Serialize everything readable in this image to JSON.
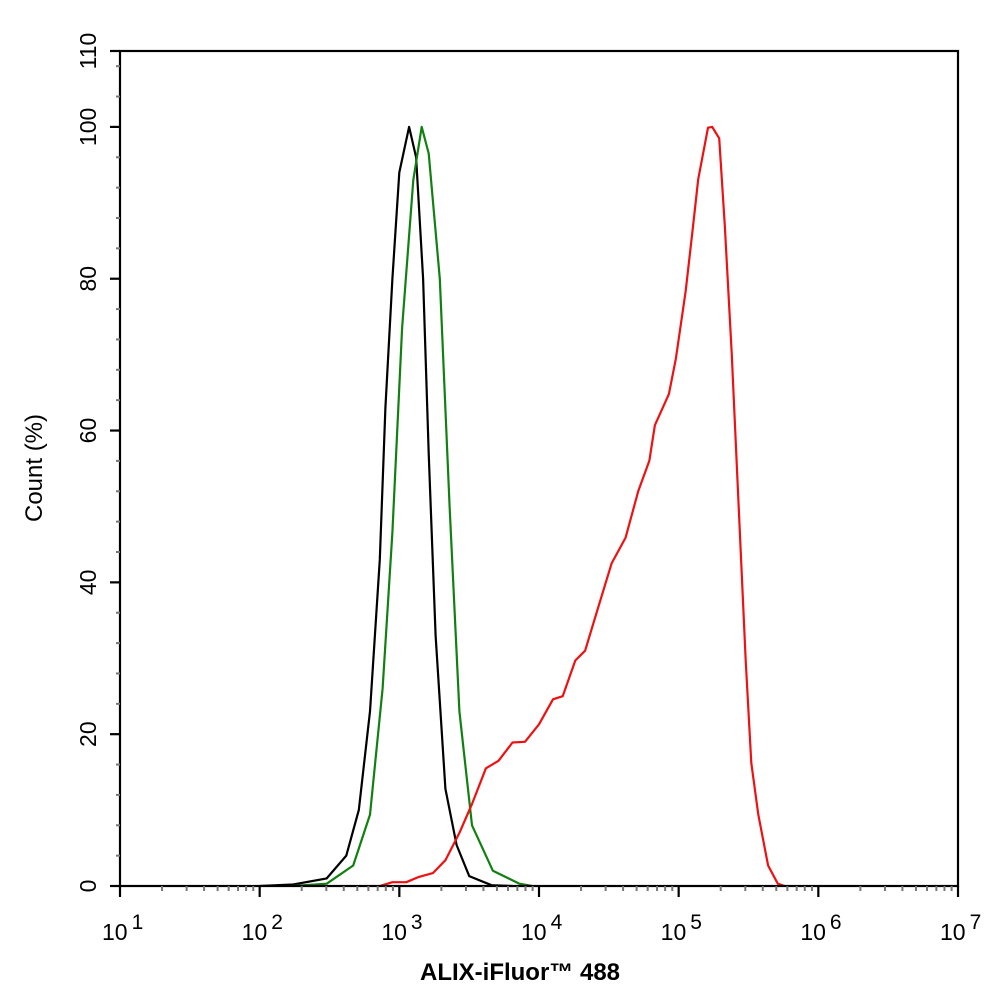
{
  "chart_data": {
    "type": "line",
    "title": "",
    "xlabel": "ALIX-iFluor™ 488",
    "ylabel": "Count  (%)",
    "x_scale": "log",
    "xlim": [
      10,
      10000000
    ],
    "ylim": [
      0,
      110
    ],
    "x_ticks": [
      {
        "base": "10",
        "exp": "1"
      },
      {
        "base": "10",
        "exp": "2"
      },
      {
        "base": "10",
        "exp": "3"
      },
      {
        "base": "10",
        "exp": "4"
      },
      {
        "base": "10",
        "exp": "5"
      },
      {
        "base": "10",
        "exp": "6"
      },
      {
        "base": "10",
        "exp": "7"
      }
    ],
    "y_ticks": [
      "0",
      "20",
      "40",
      "60",
      "80",
      "100",
      "110"
    ],
    "grid": false,
    "legend": "none",
    "series": [
      {
        "color": "#000000",
        "x_log10": [
          2.0,
          2.24,
          2.48,
          2.62,
          2.71,
          2.79,
          2.86,
          2.9,
          2.95,
          3.0,
          3.07,
          3.12,
          3.17,
          3.21,
          3.26,
          3.33,
          3.41,
          3.5,
          3.66,
          3.81
        ],
        "y": [
          0,
          0.2,
          1,
          4,
          10,
          23,
          43,
          63,
          80,
          94,
          100,
          96,
          80,
          57,
          33,
          12.8,
          5.4,
          1.3,
          0.1,
          0
        ]
      },
      {
        "color": "#118011",
        "x_log10": [
          2.24,
          2.48,
          2.67,
          2.79,
          2.88,
          2.95,
          3.02,
          3.1,
          3.16,
          3.21,
          3.29,
          3.36,
          3.43,
          3.52,
          3.67,
          3.86,
          3.95
        ],
        "y": [
          0,
          0.3,
          2.7,
          9.4,
          26,
          46.6,
          73.5,
          93,
          100,
          96.5,
          80,
          50,
          23,
          8,
          2,
          0.3,
          0
        ]
      },
      {
        "color": "#ee1111",
        "x_log10": [
          2.86,
          2.95,
          3.05,
          3.14,
          3.24,
          3.33,
          3.43,
          3.52,
          3.62,
          3.71,
          3.81,
          3.9,
          4.0,
          4.1,
          4.17,
          4.26,
          4.33,
          4.43,
          4.52,
          4.62,
          4.71,
          4.79,
          4.83,
          4.93,
          4.98,
          5.05,
          5.1,
          5.14,
          5.21,
          5.24,
          5.29,
          5.33,
          5.38,
          5.43,
          5.48,
          5.52,
          5.57,
          5.64,
          5.71,
          5.76
        ],
        "y": [
          0,
          0.5,
          0.5,
          1.2,
          1.7,
          3.4,
          7.0,
          10.8,
          15.5,
          16.5,
          18.9,
          19,
          21.3,
          24.6,
          25,
          29.7,
          31,
          37.1,
          42.5,
          45.9,
          52,
          56,
          60.7,
          64.8,
          69.5,
          78.3,
          86.4,
          93.1,
          99.9,
          100,
          98.5,
          87,
          70.2,
          49.9,
          29.7,
          16.2,
          9.4,
          2.7,
          0.3,
          0
        ]
      }
    ]
  }
}
